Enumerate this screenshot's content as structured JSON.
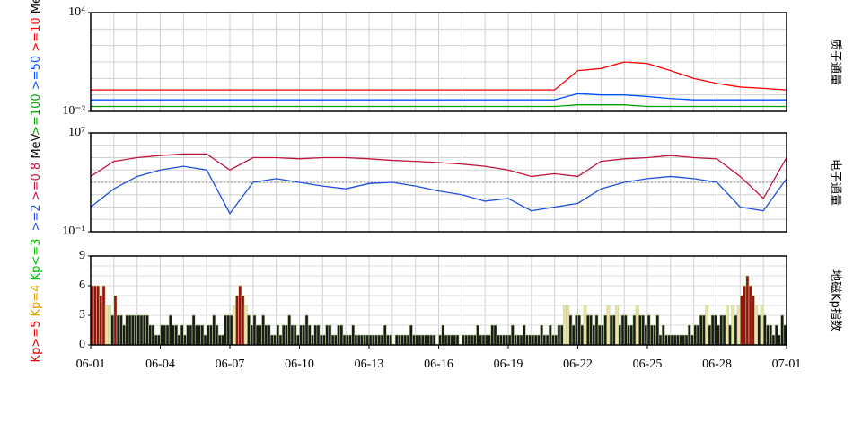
{
  "chart_data": [
    {
      "type": "line",
      "log_y": true,
      "ylabel_unit": "MeV",
      "panel_title": "质子通量",
      "ylim": [
        0.01,
        10000
      ],
      "yticks": [
        {
          "value": 10000,
          "label": "10⁴"
        },
        {
          "value": 0.01,
          "label": "10⁻²"
        }
      ],
      "xlim": [
        0,
        30
      ],
      "grid": true,
      "x": [
        0,
        1,
        2,
        3,
        4,
        5,
        6,
        7,
        8,
        9,
        10,
        11,
        12,
        13,
        14,
        15,
        16,
        17,
        18,
        19,
        20,
        21,
        22,
        23,
        24,
        25,
        26,
        27,
        28,
        29,
        30
      ],
      "series": [
        {
          "name": ">=100",
          "color": "#00a000",
          "values": [
            0.02,
            0.02,
            0.02,
            0.02,
            0.02,
            0.02,
            0.02,
            0.02,
            0.02,
            0.02,
            0.02,
            0.02,
            0.02,
            0.02,
            0.02,
            0.02,
            0.02,
            0.02,
            0.02,
            0.02,
            0.02,
            0.025,
            0.025,
            0.025,
            0.02,
            0.02,
            0.02,
            0.02,
            0.02,
            0.02,
            0.02
          ]
        },
        {
          "name": ">=50",
          "color": "#0050ff",
          "values": [
            0.05,
            0.05,
            0.05,
            0.05,
            0.05,
            0.05,
            0.05,
            0.05,
            0.05,
            0.05,
            0.05,
            0.05,
            0.05,
            0.05,
            0.05,
            0.05,
            0.05,
            0.05,
            0.05,
            0.05,
            0.05,
            0.12,
            0.1,
            0.1,
            0.08,
            0.06,
            0.05,
            0.05,
            0.05,
            0.05,
            0.05
          ]
        },
        {
          "name": ">=10",
          "color": "#ff0000",
          "values": [
            0.2,
            0.2,
            0.2,
            0.2,
            0.2,
            0.2,
            0.2,
            0.2,
            0.2,
            0.2,
            0.2,
            0.2,
            0.2,
            0.2,
            0.2,
            0.2,
            0.2,
            0.2,
            0.2,
            0.2,
            0.2,
            3,
            4,
            10,
            8,
            3,
            1,
            0.5,
            0.3,
            0.25,
            0.2
          ]
        }
      ]
    },
    {
      "type": "line",
      "log_y": true,
      "ylabel_unit": "MeV",
      "panel_title": "电子通量",
      "ylim": [
        0.1,
        10000000
      ],
      "yticks": [
        {
          "value": 10000000,
          "label": "10⁷"
        },
        {
          "value": 0.1,
          "label": "10⁻¹"
        }
      ],
      "xlim": [
        0,
        30
      ],
      "grid": true,
      "threshold": 1000,
      "x": [
        0,
        1,
        2,
        3,
        4,
        5,
        6,
        7,
        8,
        9,
        10,
        11,
        12,
        13,
        14,
        15,
        16,
        17,
        18,
        19,
        20,
        21,
        22,
        23,
        24,
        25,
        26,
        27,
        28,
        29,
        30
      ],
      "series": [
        {
          "name": ">=2",
          "color": "#1e50dc",
          "values": [
            10,
            300,
            3000,
            10000,
            20000,
            10000,
            3,
            1000,
            2000,
            1000,
            500,
            300,
            800,
            1000,
            500,
            200,
            100,
            30,
            50,
            5,
            10,
            20,
            300,
            1000,
            2000,
            3000,
            2000,
            1000,
            10,
            5,
            2000
          ]
        },
        {
          "name": ">=0.8",
          "color": "#c0143c",
          "values": [
            3000,
            50000,
            100000,
            150000,
            200000,
            200000,
            10000,
            100000,
            100000,
            80000,
            100000,
            100000,
            80000,
            60000,
            50000,
            40000,
            30000,
            20000,
            10000,
            3000,
            5000,
            3000,
            50000,
            80000,
            100000,
            150000,
            100000,
            80000,
            3000,
            50,
            100000
          ]
        }
      ]
    },
    {
      "type": "bar",
      "panel_title": "地磁Kp指数",
      "ylim": [
        0,
        9
      ],
      "yticks": [
        0,
        3,
        6,
        9
      ],
      "xlim": [
        0,
        30
      ],
      "grid": true,
      "xticks": [
        {
          "value": 0,
          "label": "06-01"
        },
        {
          "value": 3,
          "label": "06-04"
        },
        {
          "value": 6,
          "label": "06-07"
        },
        {
          "value": 9,
          "label": "06-10"
        },
        {
          "value": 12,
          "label": "06-13"
        },
        {
          "value": 15,
          "label": "06-16"
        },
        {
          "value": 18,
          "label": "06-19"
        },
        {
          "value": 21,
          "label": "06-22"
        },
        {
          "value": 24,
          "label": "06-25"
        },
        {
          "value": 27,
          "label": "06-28"
        },
        {
          "value": 30,
          "label": "07-01"
        }
      ],
      "levels": [
        {
          "name": "Kp>=5",
          "color": "#e00000",
          "bar_color": "#9a1010",
          "min": 5
        },
        {
          "name": "Kp=4",
          "color": "#e0a000",
          "bar_color": "#ece2a8",
          "min": 4
        },
        {
          "name": "Kp<=3",
          "color": "#00c000",
          "bar_color": "#1a1a1a",
          "min": 0
        }
      ],
      "values": [
        6,
        6,
        6,
        5,
        6,
        4,
        4,
        3,
        5,
        3,
        3,
        2,
        3,
        3,
        3,
        3,
        3,
        3,
        3,
        3,
        2,
        2,
        1,
        1,
        2,
        2,
        2,
        3,
        2,
        2,
        1,
        2,
        1,
        2,
        2,
        3,
        2,
        2,
        2,
        1,
        2,
        2,
        3,
        2,
        1,
        1,
        3,
        3,
        3,
        4,
        5,
        6,
        5,
        4,
        3,
        2,
        3,
        2,
        2,
        3,
        2,
        2,
        1,
        1,
        2,
        1,
        2,
        2,
        3,
        2,
        2,
        1,
        2,
        2,
        3,
        2,
        1,
        2,
        2,
        1,
        1,
        2,
        2,
        1,
        1,
        2,
        2,
        1,
        1,
        1,
        2,
        1,
        1,
        1,
        1,
        1,
        1,
        1,
        1,
        1,
        1,
        2,
        1,
        1,
        0,
        1,
        1,
        1,
        1,
        1,
        2,
        1,
        1,
        1,
        1,
        1,
        1,
        1,
        1,
        0,
        1,
        2,
        1,
        1,
        1,
        1,
        1,
        0,
        1,
        1,
        1,
        1,
        1,
        2,
        1,
        1,
        1,
        1,
        2,
        2,
        1,
        1,
        1,
        1,
        1,
        2,
        1,
        1,
        1,
        2,
        1,
        1,
        1,
        1,
        1,
        2,
        1,
        1,
        2,
        1,
        1,
        2,
        2,
        4,
        4,
        3,
        2,
        3,
        3,
        2,
        4,
        3,
        3,
        2,
        3,
        2,
        2,
        3,
        4,
        3,
        3,
        4,
        2,
        3,
        3,
        2,
        2,
        3,
        4,
        3,
        3,
        2,
        3,
        2,
        2,
        3,
        1,
        2,
        1,
        1,
        1,
        1,
        1,
        1,
        1,
        1,
        2,
        1,
        2,
        2,
        3,
        3,
        4,
        2,
        3,
        3,
        2,
        3,
        3,
        4,
        2,
        4,
        3,
        4,
        5,
        6,
        7,
        6,
        5,
        4,
        3,
        4,
        3,
        2,
        2,
        1,
        2,
        1,
        3,
        2
      ]
    }
  ]
}
